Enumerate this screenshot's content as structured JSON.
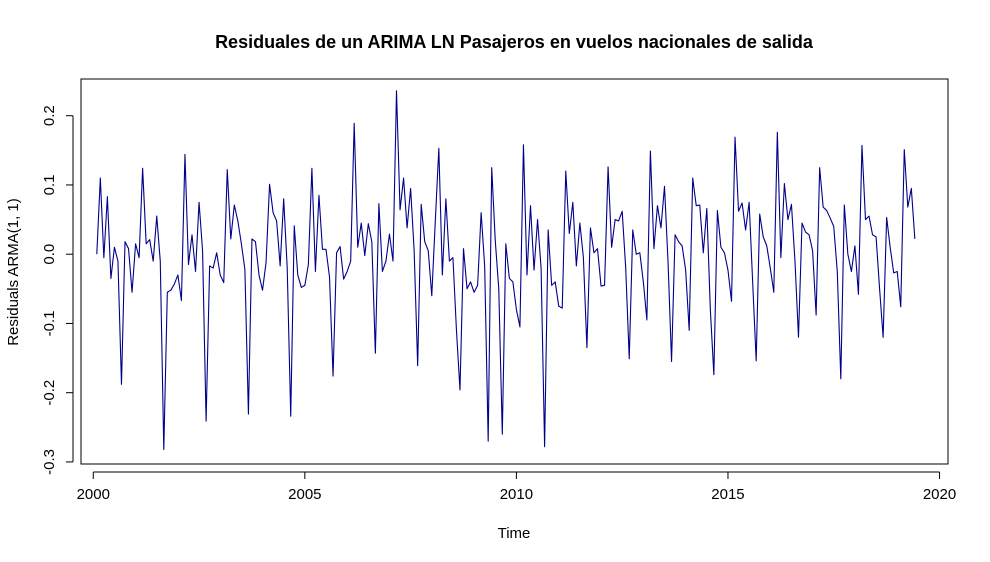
{
  "chart_data": {
    "type": "line",
    "title": "Residuales de un ARIMA LN Pasajeros en vuelos nacionales de salida",
    "xlabel": "Time",
    "ylabel": "Residuals ARMA(1, 1)",
    "xlim": [
      1999.71,
      2020.2
    ],
    "ylim": [
      -0.303,
      0.253
    ],
    "x_ticks": [
      2000,
      2005,
      2010,
      2015,
      2020
    ],
    "x_tick_labels": [
      "2000",
      "2005",
      "2010",
      "2015",
      "2020"
    ],
    "y_ticks": [
      -0.3,
      -0.2,
      -0.1,
      0.0,
      0.1,
      0.2
    ],
    "y_tick_labels": [
      "-0.3",
      "-0.2",
      "-0.1",
      "0.0",
      "0.1",
      "0.2"
    ],
    "grid": false,
    "legend": "none",
    "series_color": "#00008B",
    "x_start": 2000.0833,
    "frequency": 12,
    "values": [
      0.0,
      0.11,
      -0.005,
      0.083,
      -0.035,
      0.01,
      -0.01,
      -0.188,
      0.018,
      0.008,
      -0.055,
      0.015,
      -0.005,
      0.124,
      0.015,
      0.021,
      -0.01,
      0.055,
      -0.01,
      -0.282,
      -0.055,
      -0.052,
      -0.043,
      -0.03,
      -0.067,
      0.144,
      -0.015,
      0.028,
      -0.025,
      0.075,
      0.005,
      -0.241,
      -0.017,
      -0.02,
      0.002,
      -0.03,
      -0.041,
      0.122,
      0.022,
      0.071,
      0.048,
      0.015,
      -0.022,
      -0.231,
      0.022,
      0.018,
      -0.03,
      -0.052,
      -0.012,
      0.101,
      0.06,
      0.048,
      -0.017,
      0.08,
      -0.02,
      -0.234,
      0.041,
      -0.03,
      -0.048,
      -0.045,
      -0.015,
      0.124,
      -0.025,
      0.085,
      0.007,
      0.007,
      -0.033,
      -0.176,
      0.002,
      0.011,
      -0.036,
      -0.025,
      -0.01,
      0.189,
      0.01,
      0.045,
      -0.002,
      0.044,
      0.018,
      -0.143,
      0.073,
      -0.025,
      -0.01,
      0.029,
      -0.01,
      0.236,
      0.064,
      0.11,
      0.038,
      0.095,
      0.005,
      -0.161,
      0.072,
      0.018,
      0.005,
      -0.06,
      0.048,
      0.153,
      -0.03,
      0.08,
      -0.01,
      -0.005,
      -0.11,
      -0.196,
      0.008,
      -0.05,
      -0.04,
      -0.055,
      -0.045,
      0.06,
      -0.017,
      -0.27,
      0.125,
      0.02,
      -0.05,
      -0.26,
      0.015,
      -0.035,
      -0.04,
      -0.08,
      -0.105,
      0.158,
      -0.03,
      0.07,
      -0.023,
      0.05,
      -0.02,
      -0.278,
      0.035,
      -0.045,
      -0.04,
      -0.075,
      -0.078,
      0.12,
      0.03,
      0.075,
      -0.017,
      0.045,
      -0.005,
      -0.135,
      0.038,
      0.002,
      0.008,
      -0.046,
      -0.045,
      0.126,
      0.01,
      0.05,
      0.048,
      0.062,
      -0.02,
      -0.151,
      0.035,
      0.0,
      0.002,
      -0.04,
      -0.095,
      0.149,
      0.008,
      0.07,
      0.038,
      0.098,
      -0.011,
      -0.155,
      0.028,
      0.018,
      0.012,
      -0.023,
      -0.11,
      0.11,
      0.07,
      0.071,
      0.002,
      0.066,
      -0.08,
      -0.174,
      0.063,
      0.01,
      0.002,
      -0.023,
      -0.068,
      0.169,
      0.062,
      0.074,
      0.035,
      0.075,
      -0.04,
      -0.154,
      0.058,
      0.025,
      0.012,
      -0.02,
      -0.055,
      0.176,
      -0.005,
      0.102,
      0.05,
      0.072,
      -0.01,
      -0.12,
      0.045,
      0.032,
      0.028,
      0.005,
      -0.088,
      0.125,
      0.068,
      0.063,
      0.052,
      0.04,
      -0.025,
      -0.18,
      0.071,
      0.0,
      -0.025,
      0.012,
      -0.058,
      0.157,
      0.05,
      0.055,
      0.028,
      0.025,
      -0.05,
      -0.12,
      0.053,
      0.01,
      -0.027,
      -0.025,
      -0.076,
      0.151,
      0.068,
      0.095,
      0.022
    ]
  }
}
